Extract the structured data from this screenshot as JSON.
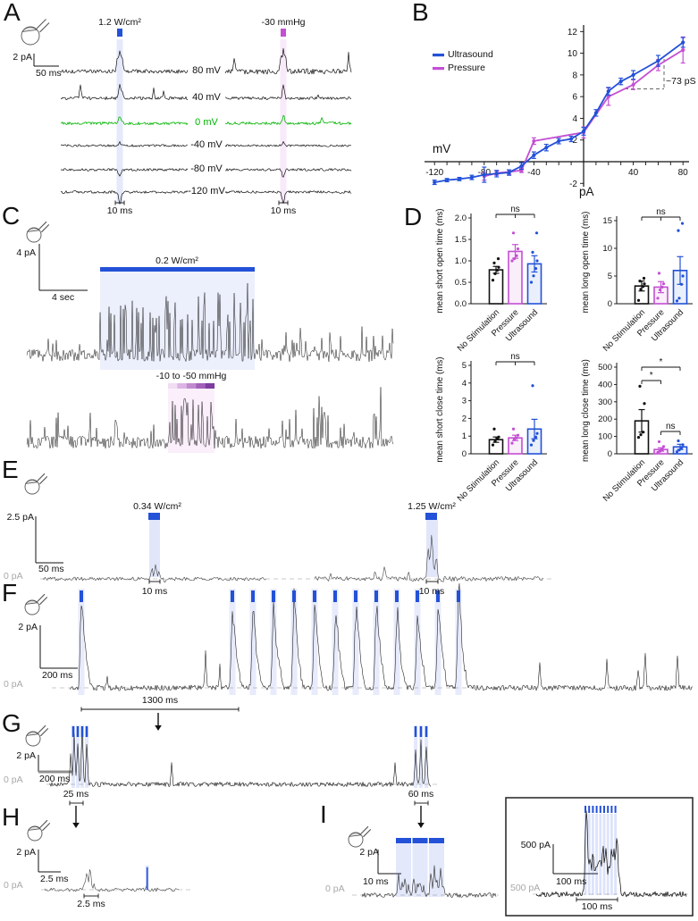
{
  "panels": {
    "A": {
      "label": "A",
      "ultrasound_stim": "1.2 W/cm²",
      "pressure_stim": "-30 mmHg",
      "scale_current": "2 pA",
      "scale_time": "50 ms",
      "voltage_labels": [
        "80 mV",
        "40 mV",
        "0 mV",
        "-40 mV",
        "-80 mV",
        "-120 mV"
      ],
      "pulse_left": "10 ms",
      "pulse_right": "10 ms"
    },
    "B": {
      "label": "B",
      "legend_ultrasound": "Ultrasound",
      "legend_pressure": "Pressure",
      "xlabel": "mV",
      "ylabel": "pA",
      "conductance_annotation": "~73 pS"
    },
    "C": {
      "label": "C",
      "scale_current": "4 pA",
      "scale_time": "4 sec",
      "ultrasound_stim": "0.2 W/cm²",
      "pressure_stim": "-10 to -50 mmHg"
    },
    "D": {
      "label": "D"
    },
    "E": {
      "label": "E",
      "scale_current": "2.5 pA",
      "scale_time": "50 ms",
      "baseline_label": "0 pA",
      "stim_low": "0.34 W/cm²",
      "stim_high": "1.25 W/cm²",
      "pulse_left": "10 ms",
      "pulse_right": "10 ms"
    },
    "F": {
      "label": "F",
      "scale_current": "2 pA",
      "scale_time": "200 ms",
      "baseline_label": "0 pA",
      "interval_label": "1300 ms"
    },
    "G": {
      "label": "G",
      "scale_current": "2 pA",
      "scale_time": "200 ms",
      "baseline_label": "0 pA",
      "zoom_left": "25 ms",
      "zoom_right": "60 ms"
    },
    "H": {
      "label": "H",
      "scale_current": "2 pA",
      "scale_time": "2.5 ms",
      "baseline_label": "0 pA",
      "burst_duration": "2.5 ms"
    },
    "I": {
      "label": "I",
      "scale_current": "2 pA",
      "scale_time": "10 ms",
      "baseline_label": "0 pA",
      "inset_scale_current": "500 pA",
      "inset_scale_time": "100 ms",
      "inset_baseline_label": "500 pA",
      "inset_burst_duration": "100 ms"
    }
  },
  "colors": {
    "ultrasound": "#2351d8",
    "pressure": "#c44fd4",
    "zero_mv_trace": "#00b400",
    "baseline_gray": "#a8a8a8"
  },
  "chart_data": [
    {
      "type": "line",
      "panel": "B",
      "xlabel": "mV",
      "ylabel": "pA",
      "xlim": [
        -130,
        85
      ],
      "ylim": [
        -2.6,
        12.5
      ],
      "xticks": [
        -120,
        -80,
        -40,
        40,
        80
      ],
      "yticks": [
        -2,
        2,
        4,
        6,
        8,
        10,
        12
      ],
      "legend_position": "upper left",
      "annotation": "~73 pS",
      "grid": false,
      "series": [
        {
          "name": "Pressure",
          "color": "#c44fd4",
          "x": [
            -80,
            -70,
            -60,
            -50,
            -40,
            0,
            20,
            40,
            60,
            80
          ],
          "y": [
            -1.35,
            -1.05,
            -0.95,
            -0.8,
            1.9,
            2.7,
            6.0,
            7.1,
            8.9,
            10.3
          ],
          "err": [
            0.35,
            0.2,
            0.2,
            0.2,
            0.3,
            0.5,
            0.8,
            0.45,
            0.5,
            1.2
          ]
        },
        {
          "name": "Ultrasound",
          "color": "#2351d8",
          "x": [
            -120,
            -110,
            -100,
            -90,
            -80,
            -70,
            -60,
            -50,
            -40,
            -30,
            -20,
            -10,
            0,
            10,
            20,
            30,
            40,
            60,
            80
          ],
          "y": [
            -1.9,
            -1.7,
            -1.6,
            -1.45,
            -1.2,
            -1.1,
            -1.0,
            -0.4,
            0.6,
            1.3,
            1.9,
            2.1,
            2.8,
            4.5,
            6.5,
            7.4,
            8.0,
            9.3,
            11.0
          ],
          "err": [
            0.2,
            0.15,
            0.15,
            0.2,
            0.7,
            0.3,
            0.25,
            0.3,
            0.3,
            0.3,
            0.25,
            0.25,
            0.35,
            0.3,
            0.35,
            0.3,
            0.4,
            0.5,
            0.45
          ]
        }
      ]
    },
    {
      "type": "bar",
      "panel": "D",
      "ylabel": "mean short open time (ms)",
      "categories": [
        "No Stimulation",
        "Pressure",
        "Ultrasound"
      ],
      "values": [
        0.79,
        1.22,
        0.93
      ],
      "errors": [
        0.08,
        0.16,
        0.19
      ],
      "ylim": [
        0,
        2
      ],
      "yticks": [
        0,
        0.5,
        1,
        1.5,
        2
      ],
      "decimals": 1,
      "bar_colors": [
        "#111111",
        "#c44fd4",
        "#2351d8"
      ],
      "significance": [
        {
          "between": [
            "No Stimulation",
            "Ultrasound"
          ],
          "label": "ns"
        }
      ],
      "points": [
        [
          0.55,
          0.7,
          0.78,
          0.85,
          0.95,
          1.05
        ],
        [
          1.0,
          1.05,
          1.12,
          1.28,
          1.65
        ],
        [
          0.5,
          0.65,
          0.82,
          1.0,
          1.2,
          1.65
        ]
      ]
    },
    {
      "type": "bar",
      "panel": "D",
      "ylabel": "mean long open time (ms)",
      "categories": [
        "No Stimulation",
        "Pressure",
        "Ultrasound"
      ],
      "values": [
        3.2,
        3.0,
        6.0
      ],
      "errors": [
        0.9,
        1.0,
        2.5
      ],
      "ylim": [
        0,
        15
      ],
      "yticks": [
        0,
        5,
        10,
        15
      ],
      "decimals": 0,
      "bar_colors": [
        "#111111",
        "#c44fd4",
        "#2351d8"
      ],
      "significance": [
        {
          "between": [
            "No Stimulation",
            "Ultrasound"
          ],
          "label": "ns"
        }
      ],
      "points": [
        [
          0.6,
          2.6,
          3.1,
          3.6,
          4.1,
          4.6
        ],
        [
          1.0,
          2.5,
          3.0,
          3.6,
          5.5
        ],
        [
          0.5,
          1.0,
          3.5,
          5.0,
          13.2,
          14.5
        ]
      ]
    },
    {
      "type": "bar",
      "panel": "D",
      "ylabel": "mean short close time (ms)",
      "categories": [
        "No Stimulation",
        "Pressure",
        "Ultrasound"
      ],
      "values": [
        0.8,
        0.9,
        1.4
      ],
      "errors": [
        0.15,
        0.15,
        0.55
      ],
      "ylim": [
        0,
        5
      ],
      "yticks": [
        0,
        1,
        2,
        3,
        4,
        5
      ],
      "decimals": 0,
      "bar_colors": [
        "#111111",
        "#c44fd4",
        "#2351d8"
      ],
      "significance": [
        {
          "between": [
            "No Stimulation",
            "Ultrasound"
          ],
          "label": "ns"
        }
      ],
      "points": [
        [
          0.5,
          0.7,
          0.85,
          0.95,
          1.4
        ],
        [
          0.6,
          0.8,
          0.9,
          1.05,
          1.4
        ],
        [
          0.5,
          0.75,
          0.95,
          1.15,
          3.85
        ]
      ]
    },
    {
      "type": "bar",
      "panel": "D",
      "ylabel": "mean long close time (ms)",
      "categories": [
        "No Stimulation",
        "Pressure",
        "Ultrasound"
      ],
      "values": [
        190,
        25,
        40
      ],
      "errors": [
        65,
        10,
        15
      ],
      "ylim": [
        0,
        500
      ],
      "yticks": [
        0,
        100,
        200,
        300,
        400,
        500
      ],
      "decimals": 0,
      "bar_colors": [
        "#111111",
        "#c44fd4",
        "#2351d8"
      ],
      "significance": [
        {
          "between": [
            "No Stimulation",
            "Pressure"
          ],
          "label": "*"
        },
        {
          "between": [
            "No Stimulation",
            "Ultrasound"
          ],
          "label": "*"
        },
        {
          "between": [
            "Pressure",
            "Ultrasound"
          ],
          "label": "ns"
        }
      ],
      "points": [
        [
          95,
          110,
          125,
          290,
          390
        ],
        [
          8,
          15,
          25,
          42,
          70
        ],
        [
          12,
          22,
          35,
          52,
          75
        ]
      ]
    }
  ]
}
